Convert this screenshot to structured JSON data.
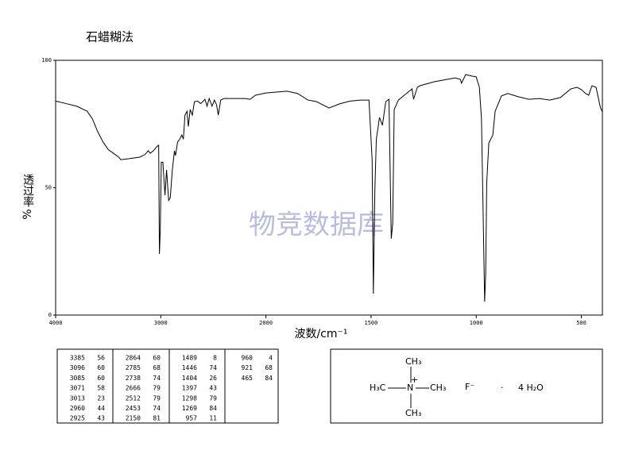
{
  "chart_data": {
    "type": "line",
    "title": "石蜡糊法",
    "xlabel": "波数/cm⁻¹",
    "ylabel": "透过率",
    "ylabel_unit": "%",
    "watermark": "物竞数据库",
    "xlim": [
      4000,
      400
    ],
    "xticks": [
      4000,
      3000,
      2000,
      1500,
      1000,
      500
    ],
    "xbreak": 2000,
    "xbreak_factor": 2,
    "ylim": [
      0,
      100
    ],
    "yticks": [
      0,
      50,
      100
    ],
    "color": "#000000",
    "x": [
      4000,
      3900,
      3800,
      3700,
      3650,
      3600,
      3550,
      3500,
      3450,
      3400,
      3380,
      3300,
      3200,
      3150,
      3120,
      3100,
      3070,
      3040,
      3020,
      3013,
      3005,
      2995,
      2980,
      2960,
      2945,
      2925,
      2910,
      2890,
      2870,
      2860,
      2840,
      2820,
      2800,
      2785,
      2770,
      2750,
      2738,
      2720,
      2700,
      2680,
      2650,
      2620,
      2600,
      2580,
      2560,
      2540,
      2512,
      2490,
      2470,
      2453,
      2430,
      2400,
      2300,
      2200,
      2150,
      2100,
      2000,
      1900,
      1850,
      1800,
      1760,
      1700,
      1650,
      1600,
      1550,
      1510,
      1495,
      1489,
      1482,
      1475,
      1460,
      1446,
      1430,
      1415,
      1404,
      1397,
      1390,
      1370,
      1305,
      1298,
      1280,
      1269,
      1200,
      1100,
      1075,
      1070,
      1050,
      1020,
      1000,
      985,
      975,
      965,
      960,
      955,
      950,
      940,
      921,
      910,
      880,
      850,
      800,
      750,
      700,
      650,
      600,
      550,
      520,
      500,
      480,
      465,
      450,
      430,
      410,
      400
    ],
    "values": [
      84,
      83,
      82,
      80,
      77,
      72,
      68,
      65,
      63.5,
      62,
      61,
      61.4,
      62,
      63,
      64.5,
      63.5,
      64.5,
      66,
      66.7,
      24,
      33,
      60,
      60,
      47,
      57,
      45,
      46,
      57,
      64.5,
      62.6,
      68,
      69,
      70.7,
      69,
      78.5,
      80,
      74,
      80.7,
      78.5,
      83.8,
      84,
      83,
      83.8,
      84.7,
      82,
      85,
      82,
      84.4,
      82.6,
      78.5,
      84.4,
      85,
      85,
      85,
      84.7,
      86.3,
      87.2,
      87.9,
      87,
      84.4,
      83.8,
      81.3,
      82.9,
      84,
      84.4,
      84.4,
      61,
      8.4,
      49,
      69,
      77.6,
      74.5,
      83.8,
      84.7,
      30,
      36,
      80.7,
      84.4,
      88.8,
      84.7,
      89.4,
      90,
      91.6,
      93.1,
      92.5,
      91,
      94.4,
      93.8,
      93.5,
      89.4,
      77,
      30,
      5.3,
      16,
      52,
      67.6,
      70.7,
      80,
      86,
      87,
      85.7,
      84.7,
      85,
      84.4,
      85.4,
      88.8,
      89.4,
      88.5,
      87,
      86.3,
      90,
      89.4,
      81.6,
      79.7
    ]
  },
  "peak_table": [
    [
      3385,
      56
    ],
    [
      3096,
      60
    ],
    [
      3085,
      60
    ],
    [
      3071,
      58
    ],
    [
      3013,
      23
    ],
    [
      2960,
      44
    ],
    [
      2925,
      43
    ],
    [
      2864,
      60
    ],
    [
      2785,
      68
    ],
    [
      2738,
      74
    ],
    [
      2666,
      79
    ],
    [
      2512,
      79
    ],
    [
      2453,
      74
    ],
    [
      2150,
      81
    ],
    [
      1489,
      8
    ],
    [
      1446,
      74
    ],
    [
      1404,
      26
    ],
    [
      1397,
      43
    ],
    [
      1298,
      79
    ],
    [
      1269,
      84
    ],
    [
      957,
      11
    ],
    [
      960,
      4
    ],
    [
      921,
      68
    ],
    [
      465,
      84
    ]
  ],
  "structure": {
    "top": "CH₃",
    "left": "H₃C",
    "center": "N",
    "charge": "+",
    "right": "CH₃",
    "bottom": "CH₃",
    "anion": "F⁻",
    "dot": "·",
    "water": "4 H₂O"
  }
}
